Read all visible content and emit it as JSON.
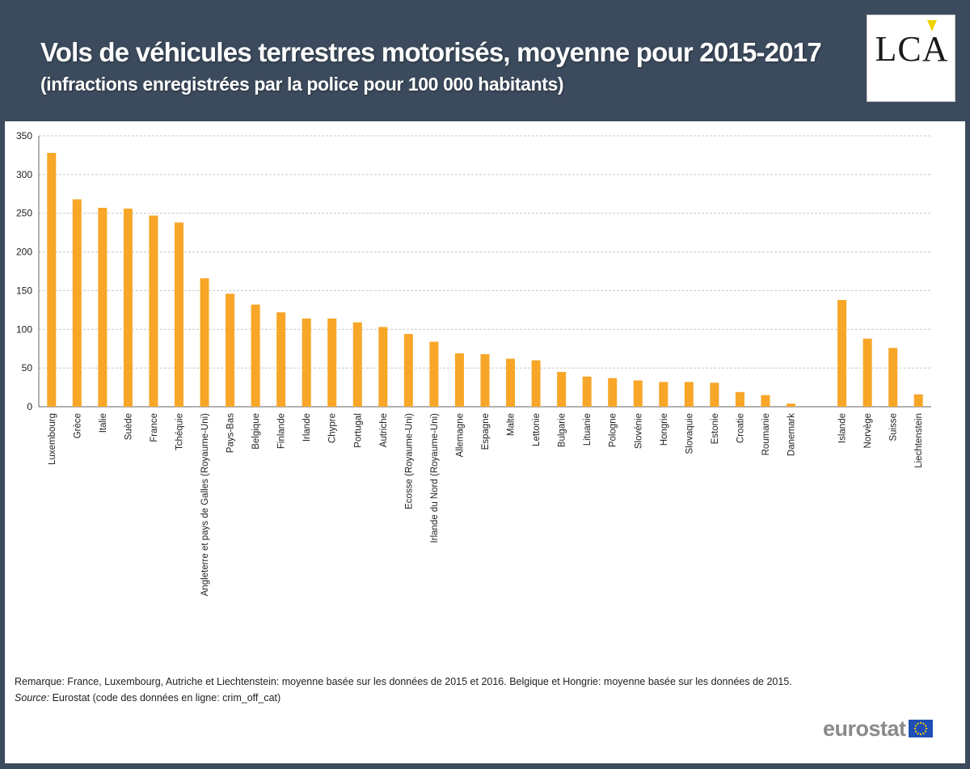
{
  "header": {
    "title": "Vols de véhicules terrestres motorisés, moyenne pour 2015-2017",
    "subtitle": "(infractions enregistrées par la police pour 100 000 habitants)",
    "logo": "LCA"
  },
  "chart_data": {
    "type": "bar",
    "title": "Vols de véhicules terrestres motorisés, moyenne pour 2015-2017",
    "subtitle": "(infractions enregistrées par la police pour 100 000 habitants)",
    "categories": [
      "Luxembourg",
      "Grèce",
      "Italie",
      "Suède",
      "France",
      "Tchéquie",
      "Angleterre et pays de Galles (Royaume-Uni)",
      "Pays-Bas",
      "Belgique",
      "Finlande",
      "Irlande",
      "Chypre",
      "Portugal",
      "Autriche",
      "Ecosse (Royaume-Uni)",
      "Irlande du Nord (Royaume-Uni)",
      "Allemagne",
      "Espagne",
      "Malte",
      "Lettonie",
      "Bulgarie",
      "Lituanie",
      "Pologne",
      "Slovénie",
      "Hongrie",
      "Slovaquie",
      "Estonie",
      "Croatie",
      "Roumanie",
      "Danemark",
      "Islande",
      "Norvège",
      "Suisse",
      "Liechtenstein"
    ],
    "values": [
      328,
      268,
      257,
      256,
      247,
      238,
      166,
      146,
      132,
      122,
      114,
      114,
      109,
      103,
      94,
      84,
      69,
      68,
      62,
      60,
      45,
      39,
      37,
      34,
      32,
      32,
      31,
      19,
      15,
      4,
      138,
      88,
      76,
      16
    ],
    "gap_before_index": 30,
    "ylim": [
      0,
      350
    ],
    "yticks": [
      0,
      50,
      100,
      150,
      200,
      250,
      300,
      350
    ],
    "ytick_labels": [
      "0",
      "50",
      "100",
      "150",
      "200",
      "250",
      "300",
      "350"
    ],
    "grid": true,
    "bar_color": "#f7a628",
    "grid_color": "#c8c8c8",
    "xlabel": "",
    "ylabel": ""
  },
  "footer": {
    "note": "Remarque: France, Luxembourg, Autriche et Liechtenstein: moyenne basée sur les données de 2015 et 2016. Belgique et Hongrie: moyenne basée sur les données de 2015.",
    "source_label": "Source:",
    "source_text": "Eurostat (code des données en ligne: crim_off_cat)",
    "brand": "eurostat",
    "flag_icon": "eu-flag-icon"
  }
}
